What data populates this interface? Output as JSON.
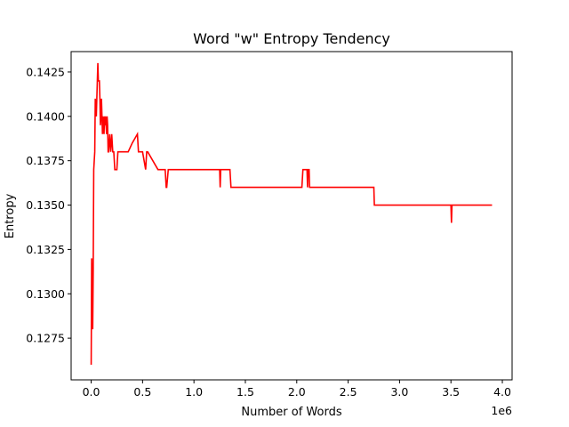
{
  "chart_data": {
    "type": "line",
    "title": "Word \"w\" Entropy Tendency",
    "xlabel": "Number of Words",
    "ylabel": "Entropy",
    "x_offset_label": "1e6",
    "xlim": [
      -0.195,
      4.095
    ],
    "ylim": [
      0.12515,
      0.14365
    ],
    "xticks": [
      0.0,
      0.5,
      1.0,
      1.5,
      2.0,
      2.5,
      3.0,
      3.5,
      4.0
    ],
    "xtick_labels": [
      "0.0",
      "0.5",
      "1.0",
      "1.5",
      "2.0",
      "2.5",
      "3.0",
      "3.5",
      "4.0"
    ],
    "yticks": [
      0.1275,
      0.13,
      0.1325,
      0.135,
      0.1375,
      0.14,
      0.1425
    ],
    "ytick_labels": [
      "0.1275",
      "0.1300",
      "0.1325",
      "0.1350",
      "0.1375",
      "0.1400",
      "0.1425"
    ],
    "grid": false,
    "legend": "none",
    "colors": {
      "line": "#ff0000"
    },
    "series": [
      {
        "x": [
          0.0,
          0.005,
          0.01,
          0.015,
          0.02,
          0.025,
          0.03,
          0.035,
          0.04,
          0.05,
          0.055,
          0.06,
          0.065,
          0.07,
          0.08,
          0.085,
          0.09,
          0.095,
          0.1,
          0.105,
          0.11,
          0.115,
          0.12,
          0.125,
          0.13,
          0.135,
          0.14,
          0.15,
          0.155,
          0.16,
          0.165,
          0.17,
          0.18,
          0.19,
          0.2,
          0.205,
          0.21,
          0.22,
          0.23,
          0.235,
          0.24,
          0.25,
          0.26,
          0.265,
          0.27,
          0.28,
          0.3,
          0.35,
          0.36,
          0.4,
          0.45,
          0.46,
          0.465,
          0.47,
          0.5,
          0.53,
          0.535,
          0.54,
          0.55,
          0.65,
          0.66,
          0.72,
          0.73,
          0.735,
          0.75,
          0.76,
          1.0,
          1.25,
          1.255,
          1.26,
          1.35,
          1.36,
          2.05,
          2.06,
          2.1,
          2.105,
          2.11,
          2.12,
          2.125,
          2.13,
          2.5,
          2.75,
          2.755,
          2.76,
          3.2,
          3.5,
          3.505,
          3.51,
          3.9
        ],
        "y": [
          0.126,
          0.132,
          0.1295,
          0.128,
          0.1315,
          0.137,
          0.1375,
          0.138,
          0.141,
          0.14,
          0.141,
          0.142,
          0.143,
          0.142,
          0.142,
          0.141,
          0.1395,
          0.14,
          0.141,
          0.14,
          0.139,
          0.14,
          0.1395,
          0.139,
          0.14,
          0.1395,
          0.14,
          0.139,
          0.14,
          0.1395,
          0.138,
          0.138,
          0.139,
          0.138,
          0.139,
          0.1385,
          0.138,
          0.138,
          0.137,
          0.137,
          0.137,
          0.137,
          0.138,
          0.138,
          0.138,
          0.138,
          0.138,
          0.138,
          0.138,
          0.1385,
          0.139,
          0.138,
          0.138,
          0.138,
          0.138,
          0.137,
          0.1375,
          0.138,
          0.138,
          0.137,
          0.137,
          0.137,
          0.136,
          0.136,
          0.137,
          0.137,
          0.137,
          0.137,
          0.136,
          0.137,
          0.137,
          0.136,
          0.136,
          0.137,
          0.137,
          0.136,
          0.137,
          0.137,
          0.136,
          0.136,
          0.136,
          0.136,
          0.135,
          0.135,
          0.135,
          0.135,
          0.134,
          0.135,
          0.135
        ]
      }
    ]
  }
}
